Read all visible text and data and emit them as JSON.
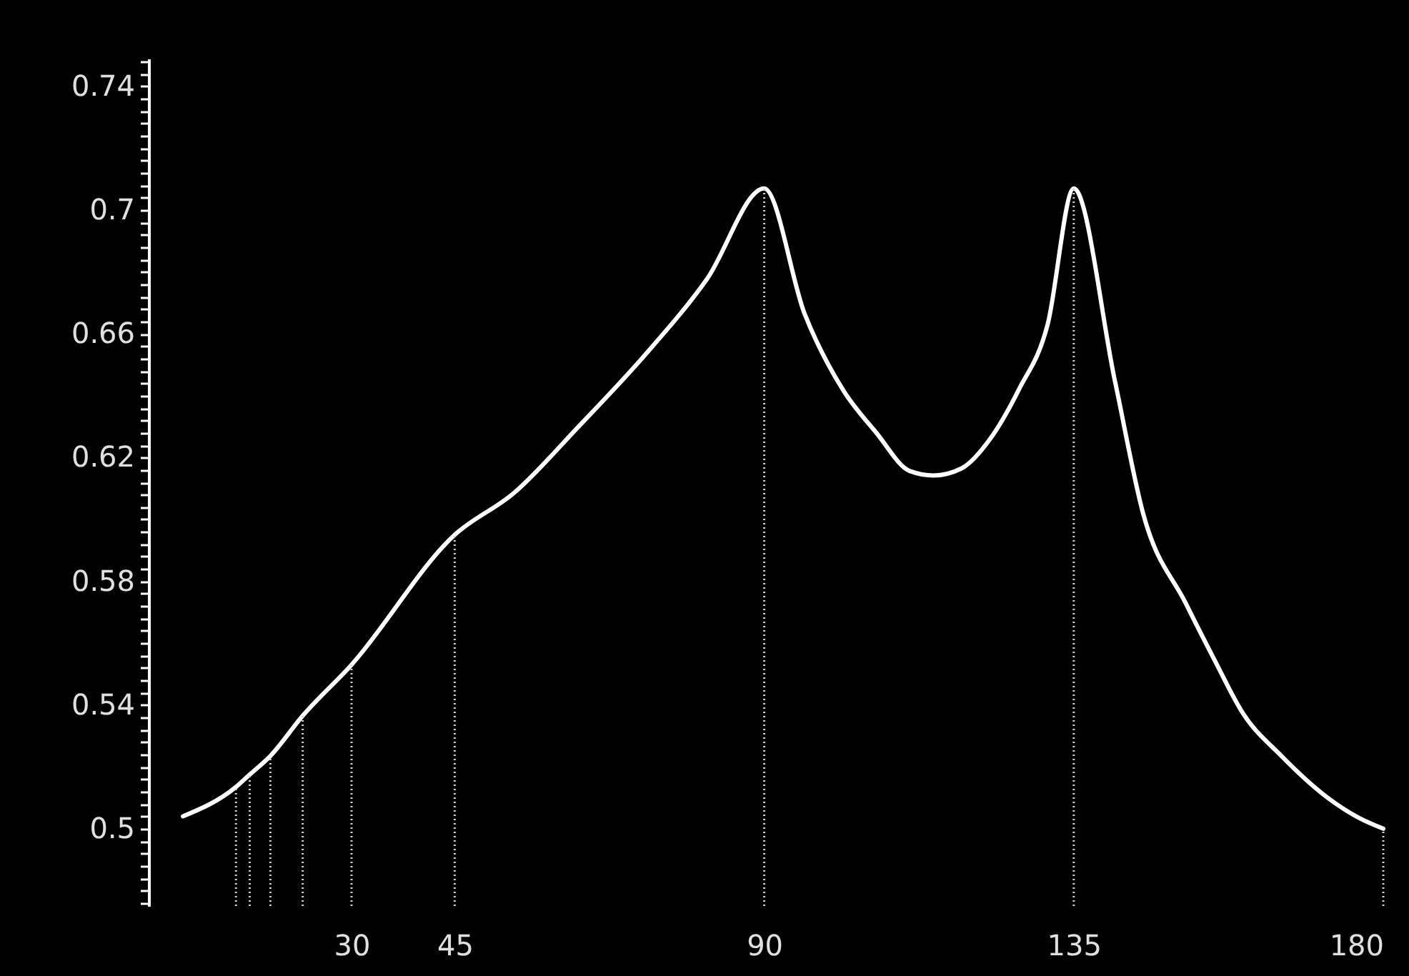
{
  "chart_data": {
    "type": "line",
    "x": [
      5.5,
      13.2,
      15.2,
      18.2,
      22.9,
      30,
      45,
      53.7,
      63,
      72.4,
      81.7,
      90,
      95.9,
      101.5,
      106.3,
      111.2,
      114.6,
      118.7,
      122.9,
      127,
      131.2,
      135,
      141,
      145.1,
      151.3,
      155.5,
      159.6,
      165.2,
      172.1,
      176.3,
      180
    ],
    "series": [
      {
        "color": "#ffffff",
        "values": [
          0.504,
          0.5135,
          0.5175,
          0.5235,
          0.5365,
          0.553,
          0.595,
          0.6087,
          0.63,
          0.6525,
          0.6778,
          0.707,
          0.6663,
          0.6417,
          0.628,
          0.6156,
          0.6142,
          0.6165,
          0.6262,
          0.6419,
          0.663,
          0.707,
          0.6446,
          0.6018,
          0.5728,
          0.5544,
          0.5373,
          0.5235,
          0.5097,
          0.5037,
          0.5
        ]
      }
    ],
    "xlim": [
      0.5,
      180
    ],
    "xticks": [
      30,
      45,
      90,
      135,
      180
    ],
    "ylim": [
      0.475,
      0.749
    ],
    "yticks": [
      {
        "value": 0.476,
        "label": null
      },
      {
        "value": 0.48,
        "label": null
      },
      {
        "value": 0.484,
        "label": null
      },
      {
        "value": 0.488,
        "label": null
      },
      {
        "value": 0.492,
        "label": null
      },
      {
        "value": 0.496,
        "label": null
      },
      0.5,
      {
        "value": 0.504,
        "label": null
      },
      {
        "value": 0.508,
        "label": null
      },
      {
        "value": 0.512,
        "label": null
      },
      {
        "value": 0.516,
        "label": null
      },
      {
        "value": 0.52,
        "label": null
      },
      {
        "value": 0.524,
        "label": null
      },
      {
        "value": 0.528,
        "label": null
      },
      {
        "value": 0.532,
        "label": null
      },
      {
        "value": 0.536,
        "label": null
      },
      0.54,
      {
        "value": 0.544,
        "label": null
      },
      {
        "value": 0.548,
        "label": null
      },
      {
        "value": 0.552,
        "label": null
      },
      {
        "value": 0.556,
        "label": null
      },
      {
        "value": 0.56,
        "label": null
      },
      {
        "value": 0.564,
        "label": null
      },
      {
        "value": 0.568,
        "label": null
      },
      {
        "value": 0.572,
        "label": null
      },
      {
        "value": 0.576,
        "label": null
      },
      0.58,
      {
        "value": 0.584,
        "label": null
      },
      {
        "value": 0.588,
        "label": null
      },
      {
        "value": 0.592,
        "label": null
      },
      {
        "value": 0.596,
        "label": null
      },
      {
        "value": 0.6,
        "label": null
      },
      {
        "value": 0.604,
        "label": null
      },
      {
        "value": 0.608,
        "label": null
      },
      {
        "value": 0.612,
        "label": null
      },
      {
        "value": 0.616,
        "label": null
      },
      0.62,
      {
        "value": 0.624,
        "label": null
      },
      {
        "value": 0.628,
        "label": null
      },
      {
        "value": 0.632,
        "label": null
      },
      {
        "value": 0.636,
        "label": null
      },
      {
        "value": 0.64,
        "label": null
      },
      {
        "value": 0.644,
        "label": null
      },
      {
        "value": 0.648,
        "label": null
      },
      {
        "value": 0.652,
        "label": null
      },
      {
        "value": 0.656,
        "label": null
      },
      0.66,
      {
        "value": 0.664,
        "label": null
      },
      {
        "value": 0.668,
        "label": null
      },
      {
        "value": 0.672,
        "label": null
      },
      {
        "value": 0.676,
        "label": null
      },
      {
        "value": 0.68,
        "label": null
      },
      {
        "value": 0.684,
        "label": null
      },
      {
        "value": 0.688,
        "label": null
      },
      {
        "value": 0.692,
        "label": null
      },
      {
        "value": 0.696,
        "label": null
      },
      0.7,
      {
        "value": 0.704,
        "label": null
      },
      {
        "value": 0.708,
        "label": null
      },
      {
        "value": 0.712,
        "label": null
      },
      {
        "value": 0.716,
        "label": null
      },
      {
        "value": 0.72,
        "label": null
      },
      {
        "value": 0.724,
        "label": null
      },
      {
        "value": 0.728,
        "label": null
      },
      {
        "value": 0.732,
        "label": null
      },
      {
        "value": 0.736,
        "label": null
      },
      0.74,
      {
        "value": 0.744,
        "label": null
      },
      {
        "value": 0.748,
        "label": null
      }
    ],
    "grid": false,
    "marker": "none",
    "line_style": "solid",
    "ref_lines": [
      {
        "axis": "x",
        "value": 13.2,
        "color": "#d0d0d0",
        "line_style": "dotted"
      },
      {
        "axis": "x",
        "value": 15.2,
        "color": "#d0d0d0",
        "line_style": "dotted"
      },
      {
        "axis": "x",
        "value": 18.2,
        "color": "#d0d0d0",
        "line_style": "dotted"
      },
      {
        "axis": "x",
        "value": 22.9,
        "color": "#d0d0d0",
        "line_style": "dotted"
      },
      {
        "axis": "x",
        "value": 30,
        "color": "#d0d0d0",
        "line_style": "dotted"
      },
      {
        "axis": "x",
        "value": 45,
        "color": "#d0d0d0",
        "line_style": "dotted"
      },
      {
        "axis": "x",
        "value": 90,
        "color": "#d0d0d0",
        "line_style": "dotted"
      },
      {
        "axis": "x",
        "value": 135,
        "color": "#d0d0d0",
        "line_style": "dotted"
      },
      {
        "axis": "x",
        "value": 180,
        "color": "#d0d0d0",
        "line_style": "dotted"
      }
    ]
  }
}
